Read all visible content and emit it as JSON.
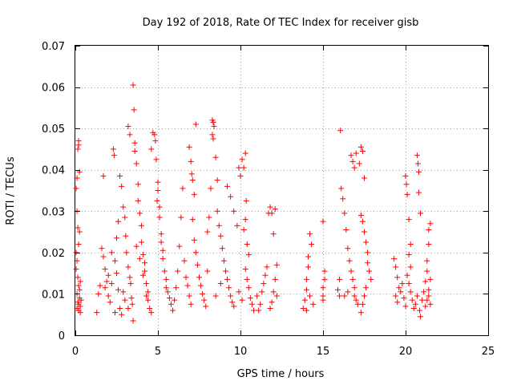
{
  "chart_data": {
    "type": "scatter",
    "title": "Day 192 of 2018, Rate Of TEC Index for receiver gisb",
    "xlabel": "GPS time / hours",
    "ylabel": "ROTI / TECUs",
    "xlim": [
      0,
      25
    ],
    "ylim": [
      0,
      0.07
    ],
    "x_ticks": [
      0,
      5,
      10,
      15,
      20,
      25
    ],
    "x_tick_labels": [
      "0",
      "5",
      "10",
      "15",
      "20",
      "25"
    ],
    "y_ticks": [
      0,
      0.01,
      0.02,
      0.03,
      0.04,
      0.05,
      0.06,
      0.07
    ],
    "y_tick_labels": [
      "0",
      "0.01",
      "0.02",
      "0.03",
      "0.04",
      "0.05",
      "0.06",
      "0.07"
    ],
    "grid": true,
    "marker": "plus",
    "series": [
      {
        "color": "#ff0000",
        "points": [
          [
            0.05,
            0.0355
          ],
          [
            0.1,
            0.038
          ],
          [
            0.15,
            0.045
          ],
          [
            0.2,
            0.047
          ],
          [
            0.2,
            0.046
          ],
          [
            0.25,
            0.0395
          ],
          [
            0.1,
            0.03
          ],
          [
            0.15,
            0.026
          ],
          [
            0.2,
            0.022
          ],
          [
            0.1,
            0.018
          ],
          [
            0.05,
            0.016
          ],
          [
            0.15,
            0.014
          ],
          [
            0.2,
            0.012
          ],
          [
            0.1,
            0.01
          ],
          [
            0.25,
            0.009
          ],
          [
            0.15,
            0.008
          ],
          [
            0.2,
            0.0075
          ],
          [
            0.3,
            0.007
          ],
          [
            0.1,
            0.0065
          ],
          [
            0.2,
            0.006
          ],
          [
            0.25,
            0.011
          ],
          [
            0.3,
            0.013
          ],
          [
            0.35,
            0.0085
          ],
          [
            0.3,
            0.0055
          ],
          [
            0.05,
            0.02
          ],
          [
            0.25,
            0.025
          ],
          [
            1.3,
            0.0055
          ],
          [
            1.4,
            0.01
          ],
          [
            1.5,
            0.012
          ],
          [
            1.6,
            0.021
          ],
          [
            1.7,
            0.0385
          ],
          [
            1.7,
            0.019
          ],
          [
            1.8,
            0.016
          ],
          [
            1.9,
            0.013
          ],
          [
            2.0,
            0.0095
          ],
          [
            2.1,
            0.008
          ],
          [
            2.2,
            0.02
          ],
          [
            2.3,
            0.045
          ],
          [
            2.35,
            0.0435
          ],
          [
            2.4,
            0.018
          ],
          [
            2.5,
            0.015
          ],
          [
            2.6,
            0.011
          ],
          [
            2.7,
            0.0065
          ],
          [
            2.8,
            0.005
          ],
          [
            2.7,
            0.0385
          ],
          [
            2.8,
            0.036
          ],
          [
            2.9,
            0.031
          ],
          [
            3.0,
            0.0285
          ],
          [
            3.05,
            0.024
          ],
          [
            3.1,
            0.02
          ],
          [
            3.2,
            0.0165
          ],
          [
            3.3,
            0.014
          ],
          [
            3.35,
            0.0125
          ],
          [
            3.4,
            0.009
          ],
          [
            3.45,
            0.0075
          ],
          [
            3.5,
            0.0035
          ],
          [
            2.6,
            0.0275
          ],
          [
            2.5,
            0.0235
          ],
          [
            2.2,
            0.0125
          ],
          [
            2.0,
            0.0145
          ],
          [
            1.8,
            0.0115
          ],
          [
            2.9,
            0.0105
          ],
          [
            3.0,
            0.0085
          ],
          [
            3.2,
            0.0065
          ],
          [
            2.4,
            0.0055
          ],
          [
            3.2,
            0.0505
          ],
          [
            3.3,
            0.0485
          ],
          [
            3.5,
            0.0605
          ],
          [
            3.55,
            0.0545
          ],
          [
            3.6,
            0.0465
          ],
          [
            3.6,
            0.0445
          ],
          [
            3.7,
            0.0415
          ],
          [
            3.8,
            0.0365
          ],
          [
            3.8,
            0.0325
          ],
          [
            3.9,
            0.0295
          ],
          [
            4.0,
            0.0265
          ],
          [
            4.0,
            0.0225
          ],
          [
            4.1,
            0.0195
          ],
          [
            4.2,
            0.0175
          ],
          [
            4.2,
            0.0155
          ],
          [
            4.3,
            0.0125
          ],
          [
            4.4,
            0.0105
          ],
          [
            4.4,
            0.0085
          ],
          [
            4.5,
            0.0065
          ],
          [
            4.6,
            0.0055
          ],
          [
            3.7,
            0.0215
          ],
          [
            3.9,
            0.0185
          ],
          [
            4.1,
            0.0145
          ],
          [
            4.3,
            0.0095
          ],
          [
            4.6,
            0.045
          ],
          [
            4.7,
            0.049
          ],
          [
            4.8,
            0.0485
          ],
          [
            4.85,
            0.047
          ],
          [
            4.9,
            0.0425
          ],
          [
            5.0,
            0.037
          ],
          [
            5.0,
            0.035
          ],
          [
            5.1,
            0.031
          ],
          [
            5.1,
            0.0285
          ],
          [
            5.2,
            0.0245
          ],
          [
            5.3,
            0.0205
          ],
          [
            5.3,
            0.0185
          ],
          [
            5.4,
            0.0155
          ],
          [
            5.5,
            0.0135
          ],
          [
            5.5,
            0.0115
          ],
          [
            5.6,
            0.0105
          ],
          [
            5.7,
            0.009
          ],
          [
            5.8,
            0.0075
          ],
          [
            5.9,
            0.006
          ],
          [
            6.0,
            0.0085
          ],
          [
            6.1,
            0.0115
          ],
          [
            6.2,
            0.0155
          ],
          [
            6.3,
            0.0215
          ],
          [
            6.4,
            0.0285
          ],
          [
            6.5,
            0.0355
          ],
          [
            6.6,
            0.018
          ],
          [
            6.7,
            0.014
          ],
          [
            6.8,
            0.012
          ],
          [
            6.9,
            0.0095
          ],
          [
            7.0,
            0.0075
          ],
          [
            5.2,
            0.0225
          ],
          [
            4.95,
            0.0325
          ],
          [
            6.9,
            0.0455
          ],
          [
            7.0,
            0.042
          ],
          [
            7.05,
            0.039
          ],
          [
            7.1,
            0.0375
          ],
          [
            7.2,
            0.034
          ],
          [
            7.3,
            0.051
          ],
          [
            7.1,
            0.028
          ],
          [
            7.2,
            0.023
          ],
          [
            7.3,
            0.02
          ],
          [
            7.4,
            0.017
          ],
          [
            7.5,
            0.014
          ],
          [
            7.6,
            0.012
          ],
          [
            7.7,
            0.01
          ],
          [
            7.8,
            0.0085
          ],
          [
            7.9,
            0.007
          ],
          [
            8.0,
            0.0155
          ],
          [
            8.0,
            0.025
          ],
          [
            8.1,
            0.0285
          ],
          [
            8.2,
            0.0355
          ],
          [
            8.3,
            0.052
          ],
          [
            8.35,
            0.0515
          ],
          [
            8.4,
            0.0505
          ],
          [
            8.3,
            0.0485
          ],
          [
            8.35,
            0.0475
          ],
          [
            8.5,
            0.043
          ],
          [
            8.6,
            0.0375
          ],
          [
            8.6,
            0.03
          ],
          [
            8.7,
            0.0265
          ],
          [
            8.8,
            0.024
          ],
          [
            8.9,
            0.021
          ],
          [
            9.0,
            0.018
          ],
          [
            9.1,
            0.0155
          ],
          [
            9.2,
            0.0135
          ],
          [
            9.3,
            0.0115
          ],
          [
            9.4,
            0.0095
          ],
          [
            9.5,
            0.008
          ],
          [
            9.6,
            0.007
          ],
          [
            8.8,
            0.0125
          ],
          [
            8.5,
            0.0095
          ],
          [
            9.2,
            0.036
          ],
          [
            9.4,
            0.0335
          ],
          [
            9.6,
            0.03
          ],
          [
            9.8,
            0.0265
          ],
          [
            9.9,
            0.0405
          ],
          [
            10.0,
            0.0385
          ],
          [
            10.1,
            0.0425
          ],
          [
            10.2,
            0.0405
          ],
          [
            10.3,
            0.044
          ],
          [
            10.35,
            0.0325
          ],
          [
            10.3,
            0.028
          ],
          [
            10.2,
            0.0255
          ],
          [
            10.4,
            0.022
          ],
          [
            10.5,
            0.0195
          ],
          [
            10.3,
            0.016
          ],
          [
            10.4,
            0.0135
          ],
          [
            10.5,
            0.0115
          ],
          [
            10.6,
            0.009
          ],
          [
            10.7,
            0.0075
          ],
          [
            10.8,
            0.006
          ],
          [
            9.9,
            0.0105
          ],
          [
            10.1,
            0.0085
          ],
          [
            11.0,
            0.0095
          ],
          [
            11.1,
            0.006
          ],
          [
            11.2,
            0.0075
          ],
          [
            11.3,
            0.0105
          ],
          [
            11.4,
            0.0125
          ],
          [
            11.5,
            0.0145
          ],
          [
            11.6,
            0.0165
          ],
          [
            11.7,
            0.0295
          ],
          [
            11.8,
            0.031
          ],
          [
            11.9,
            0.0295
          ],
          [
            12.0,
            0.0245
          ],
          [
            12.1,
            0.0305
          ],
          [
            12.2,
            0.017
          ],
          [
            12.1,
            0.0135
          ],
          [
            12.0,
            0.0105
          ],
          [
            11.9,
            0.008
          ],
          [
            11.8,
            0.0065
          ],
          [
            12.2,
            0.0095
          ],
          [
            13.8,
            0.0065
          ],
          [
            13.9,
            0.0085
          ],
          [
            14.0,
            0.011
          ],
          [
            14.0,
            0.0135
          ],
          [
            14.1,
            0.0165
          ],
          [
            14.1,
            0.019
          ],
          [
            14.2,
            0.0245
          ],
          [
            14.3,
            0.022
          ],
          [
            14.2,
            0.0095
          ],
          [
            14.4,
            0.0075
          ],
          [
            14.0,
            0.006
          ],
          [
            15.0,
            0.0275
          ],
          [
            15.0,
            0.0095
          ],
          [
            15.0,
            0.0115
          ],
          [
            15.1,
            0.0135
          ],
          [
            15.1,
            0.0155
          ],
          [
            15.0,
            0.0085
          ],
          [
            15.9,
            0.011
          ],
          [
            16.0,
            0.0095
          ],
          [
            16.0,
            0.0135
          ],
          [
            16.05,
            0.0495
          ],
          [
            16.1,
            0.0355
          ],
          [
            16.2,
            0.033
          ],
          [
            16.3,
            0.0295
          ],
          [
            16.4,
            0.0255
          ],
          [
            16.5,
            0.021
          ],
          [
            16.6,
            0.018
          ],
          [
            16.7,
            0.0155
          ],
          [
            16.8,
            0.0135
          ],
          [
            16.9,
            0.0115
          ],
          [
            16.9,
            0.0095
          ],
          [
            17.0,
            0.0085
          ],
          [
            17.1,
            0.0075
          ],
          [
            16.7,
            0.0435
          ],
          [
            16.8,
            0.042
          ],
          [
            16.9,
            0.0405
          ],
          [
            17.0,
            0.044
          ],
          [
            17.2,
            0.0415
          ],
          [
            17.3,
            0.0455
          ],
          [
            17.4,
            0.0445
          ],
          [
            17.5,
            0.038
          ],
          [
            17.3,
            0.029
          ],
          [
            17.4,
            0.0275
          ],
          [
            17.5,
            0.025
          ],
          [
            17.6,
            0.0225
          ],
          [
            17.7,
            0.02
          ],
          [
            17.7,
            0.0175
          ],
          [
            17.8,
            0.0155
          ],
          [
            17.9,
            0.0135
          ],
          [
            17.6,
            0.0115
          ],
          [
            17.5,
            0.0095
          ],
          [
            17.4,
            0.0075
          ],
          [
            17.3,
            0.0055
          ],
          [
            16.5,
            0.0105
          ],
          [
            16.3,
            0.0095
          ],
          [
            19.3,
            0.0185
          ],
          [
            19.4,
            0.0165
          ],
          [
            19.5,
            0.014
          ],
          [
            19.6,
            0.0115
          ],
          [
            19.4,
            0.0095
          ],
          [
            19.5,
            0.008
          ],
          [
            19.7,
            0.0105
          ],
          [
            19.8,
            0.0125
          ],
          [
            19.9,
            0.009
          ],
          [
            20.0,
            0.007
          ],
          [
            20.0,
            0.0385
          ],
          [
            20.05,
            0.0365
          ],
          [
            20.1,
            0.034
          ],
          [
            20.2,
            0.028
          ],
          [
            20.3,
            0.022
          ],
          [
            20.2,
            0.0195
          ],
          [
            20.3,
            0.0165
          ],
          [
            20.1,
            0.0145
          ],
          [
            20.2,
            0.0125
          ],
          [
            20.3,
            0.0105
          ],
          [
            20.4,
            0.0085
          ],
          [
            20.5,
            0.0065
          ],
          [
            20.6,
            0.0075
          ],
          [
            20.7,
            0.0095
          ],
          [
            20.7,
            0.0435
          ],
          [
            20.75,
            0.0415
          ],
          [
            20.8,
            0.0395
          ],
          [
            20.8,
            0.0345
          ],
          [
            20.9,
            0.0295
          ],
          [
            20.85,
            0.006
          ],
          [
            20.9,
            0.0045
          ],
          [
            21.0,
            0.0085
          ],
          [
            21.1,
            0.0105
          ],
          [
            21.2,
            0.013
          ],
          [
            21.3,
            0.0155
          ],
          [
            21.3,
            0.018
          ],
          [
            21.4,
            0.022
          ],
          [
            21.4,
            0.0255
          ],
          [
            21.5,
            0.027
          ],
          [
            21.5,
            0.0135
          ],
          [
            21.4,
            0.011
          ],
          [
            21.3,
            0.0085
          ],
          [
            21.2,
            0.007
          ],
          [
            21.5,
            0.0075
          ],
          [
            21.4,
            0.0095
          ]
        ]
      }
    ]
  }
}
